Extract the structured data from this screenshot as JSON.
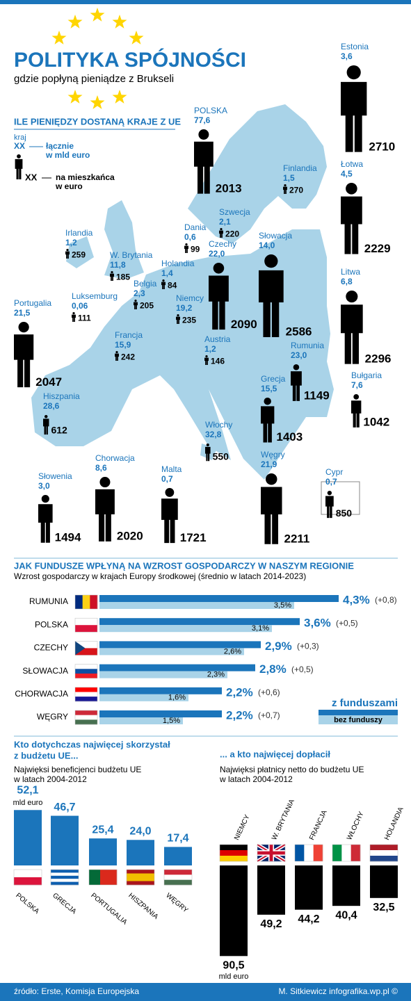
{
  "header": {
    "title": "POLITYKA SPÓJNOŚCI",
    "subtitle": "gdzie popłyną pieniądze z Brukseli"
  },
  "map": {
    "heading": "ILE PIENIĘDZY DOSTANĄ KRAJE Z UE",
    "legend": {
      "country": "kraj",
      "xx_total": "XX",
      "total": "łącznie",
      "total_unit": "w mld euro",
      "xx_per": "XX",
      "per": "na mieszkańca",
      "per_unit": "w euro"
    },
    "countries": [
      {
        "name": "Estonia",
        "total": 3.6,
        "total_label": "3,6",
        "per_capita": 2710
      },
      {
        "name": "POLSKA",
        "total": 77.6,
        "total_label": "77,6",
        "per_capita": 2013
      },
      {
        "name": "Łotwa",
        "total": 4.5,
        "total_label": "4,5",
        "per_capita": 2229
      },
      {
        "name": "Finlandia",
        "total": 1.5,
        "total_label": "1,5",
        "per_capita": 270
      },
      {
        "name": "Szwecja",
        "total": 2.1,
        "total_label": "2,1",
        "per_capita": 220
      },
      {
        "name": "Dania",
        "total": 0.6,
        "total_label": "0,6",
        "per_capita": 99
      },
      {
        "name": "Irlandia",
        "total": 1.2,
        "total_label": "1,2",
        "per_capita": 259
      },
      {
        "name": "Czechy",
        "total": 22.0,
        "total_label": "22,0",
        "per_capita": 2090
      },
      {
        "name": "Słowacja",
        "total": 14.0,
        "total_label": "14,0",
        "per_capita": 2586
      },
      {
        "name": "W. Brytania",
        "total": 11.8,
        "total_label": "11,8",
        "per_capita": 185
      },
      {
        "name": "Holandia",
        "total": 1.4,
        "total_label": "1,4",
        "per_capita": 84
      },
      {
        "name": "Litwa",
        "total": 6.8,
        "total_label": "6,8",
        "per_capita": 2296
      },
      {
        "name": "Belgia",
        "total": 2.3,
        "total_label": "2,3",
        "per_capita": 205
      },
      {
        "name": "Luksemburg",
        "total": 0.06,
        "total_label": "0,06",
        "per_capita": 111
      },
      {
        "name": "Niemcy",
        "total": 19.2,
        "total_label": "19,2",
        "per_capita": 235
      },
      {
        "name": "Portugalia",
        "total": 21.5,
        "total_label": "21,5",
        "per_capita": 2047
      },
      {
        "name": "Francja",
        "total": 15.9,
        "total_label": "15,9",
        "per_capita": 242
      },
      {
        "name": "Austria",
        "total": 1.2,
        "total_label": "1,2",
        "per_capita": 146
      },
      {
        "name": "Rumunia",
        "total": 23.0,
        "total_label": "23,0",
        "per_capita": 1149
      },
      {
        "name": "Bułgaria",
        "total": 7.6,
        "total_label": "7,6",
        "per_capita": 1042
      },
      {
        "name": "Grecja",
        "total": 15.5,
        "total_label": "15,5",
        "per_capita": 1403
      },
      {
        "name": "Hiszpania",
        "total": 28.6,
        "total_label": "28,6",
        "per_capita": 612
      },
      {
        "name": "Włochy",
        "total": 32.8,
        "total_label": "32,8",
        "per_capita": 550
      },
      {
        "name": "Węgry",
        "total": 21.9,
        "total_label": "21,9",
        "per_capita": 2211
      },
      {
        "name": "Cypr",
        "total": 0.7,
        "total_label": "0,7",
        "per_capita": 850
      },
      {
        "name": "Słowenia",
        "total": 3.0,
        "total_label": "3,0",
        "per_capita": 1494
      },
      {
        "name": "Chorwacja",
        "total": 8.6,
        "total_label": "8,6",
        "per_capita": 2020
      },
      {
        "name": "Malta",
        "total": 0.7,
        "total_label": "0,7",
        "per_capita": 1721
      }
    ]
  },
  "growth": {
    "heading": "JAK FUNDUSZE WPŁYNĄ NA WZROST GOSPODARCZY W NASZYM REGIONIE",
    "subtitle": "Wzrost gospodarczy w krajach Europy środkowej (średnio w latach 2014-2023)",
    "legend_with": "z funduszami",
    "legend_without": "bez funduszy",
    "rows": [
      {
        "name": "RUMUNIA",
        "with": 4.3,
        "with_label": "4,3%",
        "without": 3.5,
        "without_label": "3,5%",
        "diff_label": "(+0,8)"
      },
      {
        "name": "POLSKA",
        "with": 3.6,
        "with_label": "3,6%",
        "without": 3.1,
        "without_label": "3,1%",
        "diff_label": "(+0,5)"
      },
      {
        "name": "CZECHY",
        "with": 2.9,
        "with_label": "2,9%",
        "without": 2.6,
        "without_label": "2,6%",
        "diff_label": "(+0,3)"
      },
      {
        "name": "SŁOWACJA",
        "with": 2.8,
        "with_label": "2,8%",
        "without": 2.3,
        "without_label": "2,3%",
        "diff_label": "(+0,5)"
      },
      {
        "name": "CHORWACJA",
        "with": 2.2,
        "with_label": "2,2%",
        "without": 1.6,
        "without_label": "1,6%",
        "diff_label": "(+0,6)"
      },
      {
        "name": "WĘGRY",
        "with": 2.2,
        "with_label": "2,2%",
        "without": 1.5,
        "without_label": "1,5%",
        "diff_label": "(+0,7)"
      }
    ]
  },
  "beneficiaries": {
    "heading_1": "Kto dotychczas najwięcej skorzystał",
    "heading_2": "z budżetu UE...",
    "subtitle_1": "Najwięksi beneficjenci budżetu UE",
    "subtitle_2": "w latach 2004-2012",
    "unit": "mld euro",
    "items": [
      {
        "name": "POLSKA",
        "value": 52.1,
        "label": "52,1"
      },
      {
        "name": "GRECJA",
        "value": 46.7,
        "label": "46,7"
      },
      {
        "name": "PORTUGALIA",
        "value": 25.4,
        "label": "25,4"
      },
      {
        "name": "HISZPANIA",
        "value": 24.0,
        "label": "24,0"
      },
      {
        "name": "WĘGRY",
        "value": 17.4,
        "label": "17,4"
      }
    ]
  },
  "payers": {
    "heading": "... a kto najwięcej dopłacił",
    "subtitle_1": "Najwięksi płatnicy netto do budżetu UE",
    "subtitle_2": "w latach 2004-2012",
    "unit": "mld euro",
    "items": [
      {
        "name": "NIEMCY",
        "value": 90.5,
        "label": "90,5"
      },
      {
        "name": "W. BRYTANIA",
        "value": 49.2,
        "label": "49,2"
      },
      {
        "name": "FRANCJA",
        "value": 44.2,
        "label": "44,2"
      },
      {
        "name": "WŁOCHY",
        "value": 40.4,
        "label": "40,4"
      },
      {
        "name": "HOLANDIA",
        "value": 32.5,
        "label": "32,5"
      }
    ]
  },
  "footer": {
    "source": "źródło: Erste, Komisja Europejska",
    "credit": "M. Sitkiewicz infografika.wp.pl ©"
  }
}
